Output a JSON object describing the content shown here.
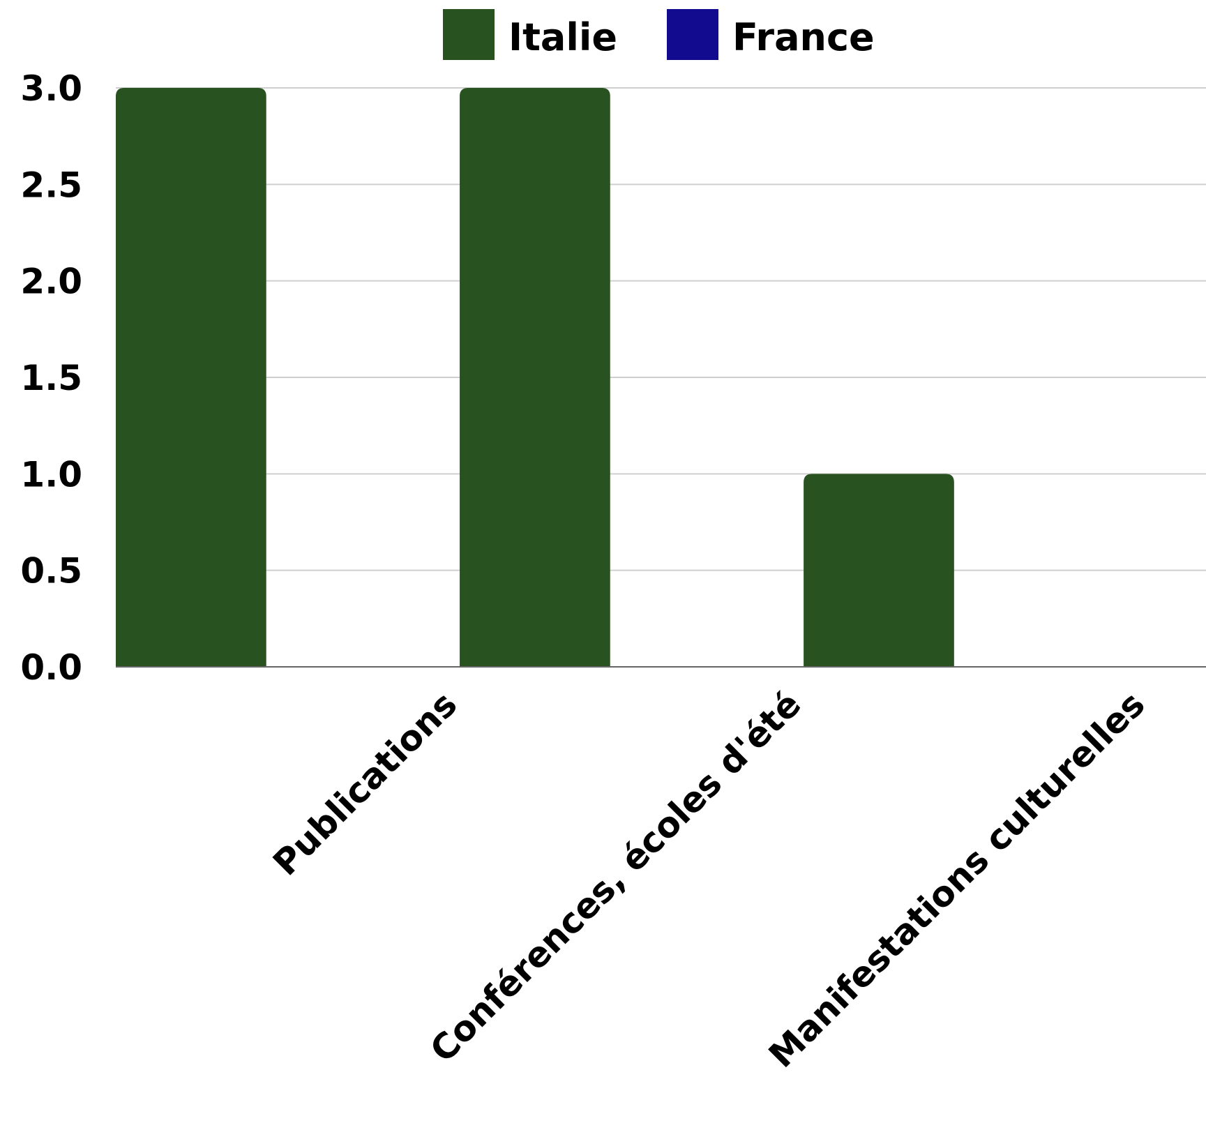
{
  "chart_data": {
    "type": "bar",
    "categories": [
      "Publications",
      "Conférences, écoles d'été",
      "Manifestations culturelles"
    ],
    "series": [
      {
        "name": "Italie",
        "color": "#295221",
        "values": [
          3,
          3,
          1
        ]
      },
      {
        "name": "France",
        "color": "#120a8f",
        "values": [
          0,
          0,
          0
        ]
      }
    ],
    "y_ticks": [
      "0.0",
      "0.5",
      "1.0",
      "1.5",
      "2.0",
      "2.5",
      "3.0"
    ],
    "ylim": [
      0,
      3
    ],
    "grid": true,
    "legend_position": "top-center"
  }
}
